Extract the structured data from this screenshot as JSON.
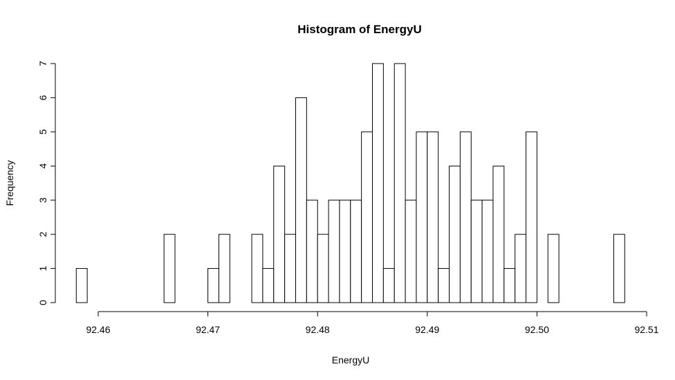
{
  "chart_data": {
    "type": "bar",
    "title": "Histogram of EnergyU",
    "xlabel": "EnergyU",
    "ylabel": "Frequency",
    "xlim": [
      92.46,
      92.51
    ],
    "ylim": [
      0,
      7
    ],
    "bin_width": 0.001,
    "bin_start": 92.458,
    "x_ticks": [
      "92.46",
      "92.47",
      "92.48",
      "92.49",
      "92.50",
      "92.51"
    ],
    "y_ticks": [
      "0",
      "1",
      "2",
      "3",
      "4",
      "5",
      "6",
      "7"
    ],
    "values": [
      1,
      0,
      0,
      0,
      0,
      0,
      0,
      0,
      2,
      0,
      0,
      0,
      1,
      2,
      0,
      0,
      2,
      1,
      4,
      2,
      6,
      3,
      2,
      3,
      3,
      3,
      5,
      7,
      1,
      7,
      3,
      5,
      5,
      1,
      4,
      5,
      3,
      3,
      4,
      1,
      2,
      5,
      0,
      2,
      0,
      0,
      0,
      0,
      0,
      2
    ],
    "grid": false
  }
}
